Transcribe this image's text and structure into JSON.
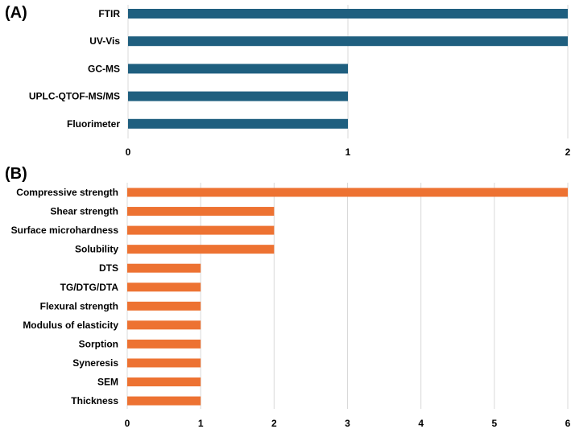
{
  "chart_data": [
    {
      "type": "bar",
      "orientation": "horizontal",
      "panel_label": "(A)",
      "categories": [
        "FTIR",
        "UV-Vis",
        "GC-MS",
        "UPLC-QTOF-MS/MS",
        "Fluorimeter"
      ],
      "values": [
        2,
        2,
        1,
        1,
        1
      ],
      "xlim": [
        0,
        2
      ],
      "xticks": [
        "0",
        "1",
        "2"
      ],
      "bar_color": "#1f5f7f",
      "grid": true,
      "title": "",
      "xlabel": "",
      "ylabel": ""
    },
    {
      "type": "bar",
      "orientation": "horizontal",
      "panel_label": "(B)",
      "categories": [
        "Compressive strength",
        "Shear strength",
        "Surface microhardness",
        "Solubility",
        "DTS",
        "TG/DTG/DTA",
        "Flexural strength",
        "Modulus of elasticity",
        "Sorption",
        "Syneresis",
        "SEM",
        "Thickness"
      ],
      "values": [
        6,
        2,
        2,
        2,
        1,
        1,
        1,
        1,
        1,
        1,
        1,
        1
      ],
      "xlim": [
        0,
        6
      ],
      "xticks": [
        "0",
        "1",
        "2",
        "3",
        "4",
        "5",
        "6"
      ],
      "bar_color": "#ed7232",
      "grid": true,
      "title": "",
      "xlabel": "",
      "ylabel": ""
    }
  ]
}
